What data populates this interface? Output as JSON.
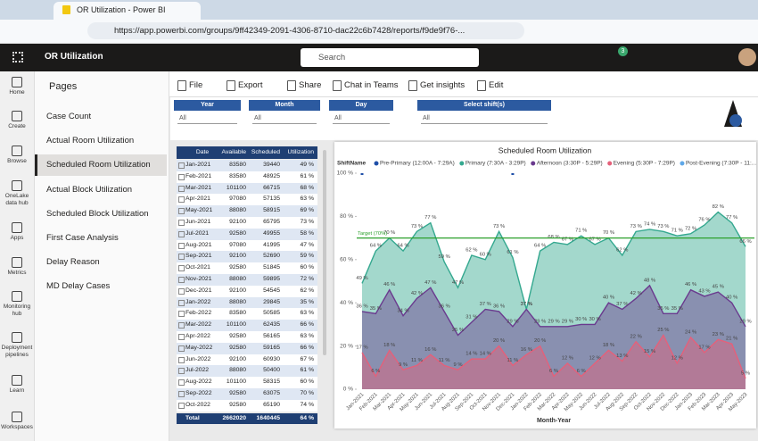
{
  "browser": {
    "tab_title": "OR Utilization - Power BI",
    "url": "https://app.powerbi.com/groups/9ff42349-2091-4306-8710-dac22c6b7428/reports/f9de9f76-..."
  },
  "app": {
    "name": "OR Utilization",
    "search": "Search",
    "notifications": "3"
  },
  "nav": [
    "Home",
    "Create",
    "Browse",
    "OneLake data hub",
    "Apps",
    "Metrics",
    "Monitoring hub",
    "Deployment pipelines",
    "Learn",
    "Workspaces"
  ],
  "pages": {
    "title": "Pages",
    "items": [
      "Case Count",
      "Actual Room Utilization",
      "Scheduled Room Utilization",
      "Actual Block Utilization",
      "Scheduled Block Utilization",
      "First Case Analysis",
      "Delay Reason",
      "MD Delay Cases"
    ],
    "selected": 2
  },
  "toolbar": [
    "File",
    "Export",
    "Share",
    "Chat in Teams",
    "Get insights",
    "Edit"
  ],
  "filters": [
    {
      "label": "Year",
      "value": "All"
    },
    {
      "label": "Month",
      "value": "All"
    },
    {
      "label": "Day",
      "value": "All"
    },
    {
      "label": "Select shift(s)",
      "value": "All"
    }
  ],
  "table": {
    "headers": [
      "Date",
      "Available",
      "Scheduled",
      "Utilization"
    ],
    "rows": [
      [
        "Jan-2021",
        83580,
        39440,
        "49 %"
      ],
      [
        "Feb-2021",
        83580,
        48925,
        "61 %"
      ],
      [
        "Mar-2021",
        101100,
        66715,
        "68 %"
      ],
      [
        "Apr-2021",
        97080,
        57135,
        "63 %"
      ],
      [
        "May-2021",
        88080,
        58915,
        "69 %"
      ],
      [
        "Jun-2021",
        92100,
        65795,
        "73 %"
      ],
      [
        "Jul-2021",
        92580,
        49955,
        "58 %"
      ],
      [
        "Aug-2021",
        97080,
        41995,
        "47 %"
      ],
      [
        "Sep-2021",
        92100,
        52690,
        "59 %"
      ],
      [
        "Oct-2021",
        92580,
        51845,
        "60 %"
      ],
      [
        "Nov-2021",
        88080,
        59895,
        "72 %"
      ],
      [
        "Dec-2021",
        92100,
        54545,
        "62 %"
      ],
      [
        "Jan-2022",
        88080,
        29845,
        "35 %"
      ],
      [
        "Feb-2022",
        83580,
        50585,
        "63 %"
      ],
      [
        "Mar-2022",
        101100,
        62435,
        "66 %"
      ],
      [
        "Apr-2022",
        92580,
        56165,
        "63 %"
      ],
      [
        "May-2022",
        92580,
        59165,
        "66 %"
      ],
      [
        "Jun-2022",
        92100,
        60930,
        "67 %"
      ],
      [
        "Jul-2022",
        88080,
        50400,
        "61 %"
      ],
      [
        "Aug-2022",
        101100,
        58315,
        "60 %"
      ],
      [
        "Sep-2022",
        92580,
        63075,
        "70 %"
      ],
      [
        "Oct-2022",
        92580,
        65190,
        "74 %"
      ]
    ],
    "total": [
      "Total",
      2662020,
      1640445,
      "64 %"
    ]
  },
  "chart_data": {
    "type": "area",
    "title": "Scheduled Room Utilization",
    "legend_title": "ShiftName",
    "x_label": "Month-Year",
    "categories": [
      "Jan-2021",
      "Feb-2021",
      "Mar-2021",
      "Apr-2021",
      "May-2021",
      "Jun-2021",
      "Jul-2021",
      "Aug-2021",
      "Sep-2021",
      "Oct-2021",
      "Nov-2021",
      "Dec-2021",
      "Jan-2022",
      "Feb-2022",
      "Mar-2022",
      "Apr-2022",
      "May-2022",
      "Jun-2022",
      "Jul-2022",
      "Aug-2022",
      "Sep-2022",
      "Oct-2022",
      "Nov-2022",
      "Dec-2022",
      "Jan-2023",
      "Feb-2023",
      "Mar-2023",
      "Apr-2023",
      "May-2023"
    ],
    "ylim": [
      0,
      100
    ],
    "yticks": [
      {
        "value": 0,
        "label": "0 %"
      },
      {
        "value": 20,
        "label": "20 %"
      },
      {
        "value": 40,
        "label": "40 %"
      },
      {
        "value": 60,
        "label": "60 %"
      },
      {
        "value": 80,
        "label": "80 %"
      },
      {
        "value": 100,
        "label": "100 %"
      }
    ],
    "grid": false,
    "target": {
      "value": 70,
      "label": "Target (70%)",
      "color": "#2ca02c"
    },
    "series": [
      {
        "name": "Pre-Primary (12:00A - 7:29A)",
        "color": "#1f4fa8",
        "values": [
          100,
          null,
          null,
          null,
          null,
          null,
          null,
          null,
          null,
          null,
          null,
          100,
          null,
          null,
          null,
          null,
          null,
          null,
          null,
          null,
          null,
          null,
          null,
          null,
          null,
          null,
          null,
          null,
          null
        ]
      },
      {
        "name": "Primary (7:30A - 3:29P)",
        "color": "#34a88f",
        "values": [
          49,
          64,
          70,
          64,
          73,
          77,
          59,
          47,
          62,
          60,
          73,
          61,
          37,
          64,
          68,
          67,
          71,
          67,
          70,
          62,
          73,
          74,
          73,
          71,
          72,
          76,
          82,
          77,
          66
        ],
        "value_labels": [
          "49 %",
          "64 %",
          "70 %",
          "64 %",
          "73 %",
          "77 %",
          "59 %",
          "47 %",
          "62 %",
          "60 %",
          "73 %",
          "61 %",
          "37 %",
          "64 %",
          "68 %",
          "67 %",
          "71 %",
          "67 %",
          "70 %",
          "62 %",
          "73 %",
          "74 %",
          "73 %",
          "71 %",
          "72 %",
          "76 %",
          "82 %",
          "77 %",
          "66 %"
        ]
      },
      {
        "name": "Afternoon (3:30P - 5:29P)",
        "color": "#6a3a8e",
        "values": [
          36,
          35,
          46,
          34,
          42,
          47,
          36,
          25,
          31,
          37,
          36,
          29,
          37,
          29,
          29,
          29,
          30,
          30,
          40,
          37,
          42,
          48,
          35,
          35,
          46,
          43,
          45,
          40,
          29
        ],
        "value_labels": [
          "36 %",
          "35 %",
          "46 %",
          "34 %",
          "42 %",
          "47 %",
          "36 %",
          "25 %",
          "31 %",
          "37 %",
          "36 %",
          "29 %",
          "37 %",
          "29 %",
          "29 %",
          "29 %",
          "30 %",
          "30 %",
          "40 %",
          "37 %",
          "42 %",
          "48 %",
          "35 %",
          "35 %",
          "46 %",
          "43 %",
          "45 %",
          "40 %",
          "29 %"
        ]
      },
      {
        "name": "Evening (5:30P - 7:29P)",
        "color": "#e5607a",
        "values": [
          17,
          6,
          18,
          9,
          11,
          16,
          11,
          9,
          14,
          14,
          20,
          11,
          16,
          20,
          6,
          12,
          6,
          12,
          18,
          13,
          22,
          15,
          25,
          12,
          24,
          17,
          23,
          21,
          5
        ],
        "value_labels": [
          "17 %",
          "6 %",
          "18 %",
          "9 %",
          "11 %",
          "16 %",
          "11 %",
          "9 %",
          "14 %",
          "14 %",
          "20 %",
          "11 %",
          "16 %",
          "20 %",
          "6 %",
          "12 %",
          "6 %",
          "12 %",
          "18 %",
          "13 %",
          "22 %",
          "15 %",
          "25 %",
          "12 %",
          "24 %",
          "17 %",
          "23 %",
          "21 %",
          "5 %"
        ]
      },
      {
        "name": "Post-Evening (7:30P - 11:...",
        "color": "#5fa8e8",
        "values": [
          null,
          null,
          null,
          null,
          null,
          null,
          null,
          null,
          null,
          null,
          null,
          null,
          null,
          null,
          null,
          null,
          null,
          null,
          null,
          null,
          null,
          null,
          null,
          null,
          null,
          null,
          null,
          null,
          null
        ]
      }
    ]
  }
}
